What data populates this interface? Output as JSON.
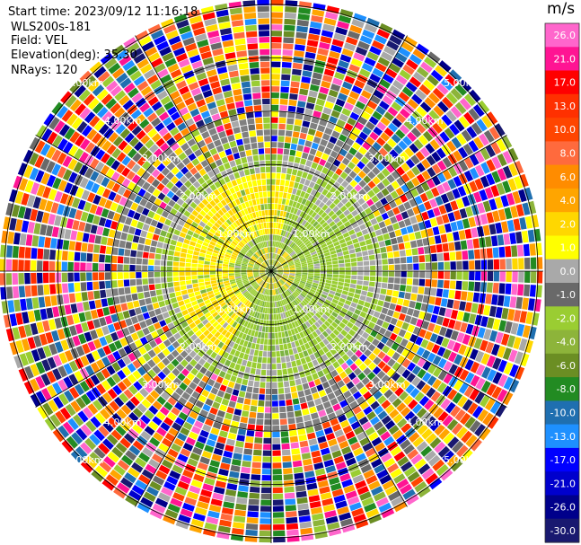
{
  "header": {
    "start_time": "Start time: 2023/09/12 11:16:18",
    "instrument": "WLS200s-181",
    "field": "Field: VEL",
    "elevation": "Elevation(deg): 35.30",
    "nrays": "NRays: 120"
  },
  "chart_data": {
    "type": "heatmap",
    "projection": "polar PPI scan",
    "field": "VEL",
    "units": "m/s",
    "nrays": 120,
    "elevation_deg": 35.3,
    "range_rings_km": [
      1.0,
      2.0,
      3.0,
      4.0,
      5.0
    ],
    "range_ring_labels": [
      "1.00km",
      "2.00km",
      "3.00km",
      "4.00km",
      "5.00km"
    ],
    "colorbar": {
      "unit_label": "m/s",
      "range": [
        -30,
        30
      ],
      "ticks": [
        "26.0",
        "21.0",
        "17.0",
        "13.0",
        "10.0",
        "8.0",
        "6.0",
        "4.0",
        "2.0",
        "1.0",
        "0.0",
        "-1.0",
        "-2.0",
        "-4.0",
        "-6.0",
        "-8.0",
        "-10.0",
        "-13.0",
        "-17.0",
        "-21.0",
        "-26.0",
        "-30.0"
      ],
      "colors": [
        "#ff66cc",
        "#ff1493",
        "#ff0000",
        "#ff3000",
        "#ff4500",
        "#ff6a3d",
        "#ff8c00",
        "#ffa500",
        "#ffd700",
        "#ffff00",
        "#a9a9a9",
        "#696969",
        "#9acd32",
        "#8db43a",
        "#6b8e23",
        "#228b22",
        "#1f6fb0",
        "#1e90ff",
        "#0000ff",
        "#0000cd",
        "#00008b",
        "#191970"
      ],
      "tick_values": [
        26,
        21,
        17,
        13,
        10,
        8,
        6,
        4,
        2,
        1,
        0,
        -1,
        -2,
        -4,
        -6,
        -8,
        -10,
        -13,
        -17,
        -21,
        -26,
        -30
      ]
    }
  }
}
